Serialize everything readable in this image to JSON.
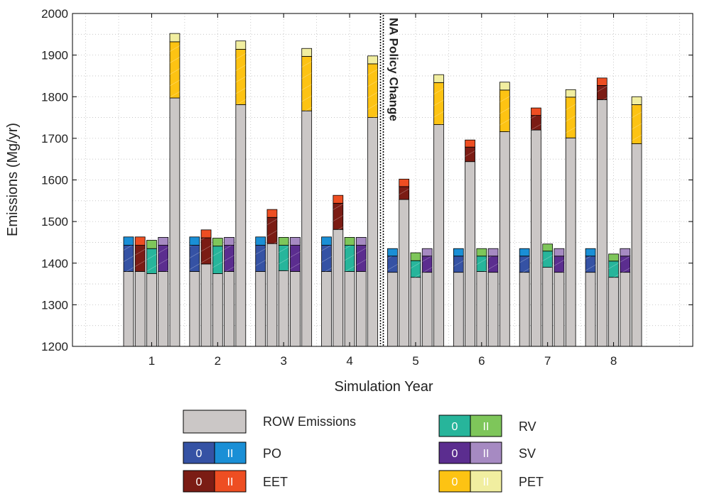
{
  "chart_data": {
    "type": "bar",
    "subtype": "grouped-stacked",
    "title": "",
    "xlabel": "Simulation Year",
    "ylabel": "Emissions (Mg/yr)",
    "ylim": [
      1200,
      2000
    ],
    "xlim": [
      -0.2,
      9.2
    ],
    "yticks": [
      1200,
      1300,
      1400,
      1500,
      1600,
      1700,
      1800,
      1900,
      2000
    ],
    "categories": [
      "1",
      "2",
      "3",
      "4",
      "5",
      "6",
      "7",
      "8"
    ],
    "grid": true,
    "annotation": {
      "text": "NA Policy Change",
      "between_categories": [
        "4",
        "5"
      ]
    },
    "colors": {
      "ROW": "#cbc7c6",
      "PO": [
        "#3552a4",
        "#1a8fd6"
      ],
      "EET": [
        "#7b1c14",
        "#ee4e22"
      ],
      "RV": [
        "#27b59b",
        "#7ec65a"
      ],
      "SV": [
        "#5b2d8f",
        "#a68ac2"
      ],
      "PET": [
        "#fdc313",
        "#f1eea0"
      ]
    },
    "bars": [
      [
        {
          "group": "PO",
          "row": 1380,
          "zero": 1443,
          "two": 1463
        },
        {
          "group": "EET",
          "row": 1380,
          "zero": 1443,
          "two": 1463
        },
        {
          "group": "RV",
          "row": 1375,
          "zero": 1435,
          "two": 1455
        },
        {
          "group": "SV",
          "row": 1380,
          "zero": 1443,
          "two": 1462
        },
        {
          "group": "PET",
          "row": 1797,
          "zero": 1932,
          "two": 1952
        }
      ],
      [
        {
          "group": "PO",
          "row": 1380,
          "zero": 1443,
          "two": 1463
        },
        {
          "group": "EET",
          "row": 1398,
          "zero": 1461,
          "two": 1480
        },
        {
          "group": "RV",
          "row": 1375,
          "zero": 1441,
          "two": 1460
        },
        {
          "group": "SV",
          "row": 1380,
          "zero": 1443,
          "two": 1462
        },
        {
          "group": "PET",
          "row": 1781,
          "zero": 1914,
          "two": 1934
        }
      ],
      [
        {
          "group": "PO",
          "row": 1380,
          "zero": 1443,
          "two": 1463
        },
        {
          "group": "EET",
          "row": 1447,
          "zero": 1510,
          "two": 1529
        },
        {
          "group": "RV",
          "row": 1382,
          "zero": 1443,
          "two": 1462
        },
        {
          "group": "SV",
          "row": 1380,
          "zero": 1443,
          "two": 1462
        },
        {
          "group": "PET",
          "row": 1766,
          "zero": 1897,
          "two": 1916
        }
      ],
      [
        {
          "group": "PO",
          "row": 1380,
          "zero": 1443,
          "two": 1463
        },
        {
          "group": "EET",
          "row": 1481,
          "zero": 1544,
          "two": 1563
        },
        {
          "group": "RV",
          "row": 1380,
          "zero": 1443,
          "two": 1462
        },
        {
          "group": "SV",
          "row": 1380,
          "zero": 1443,
          "two": 1462
        },
        {
          "group": "PET",
          "row": 1750,
          "zero": 1879,
          "two": 1898
        }
      ],
      [
        {
          "group": "PO",
          "row": 1378,
          "zero": 1417,
          "two": 1435
        },
        {
          "group": "EET",
          "row": 1553,
          "zero": 1584,
          "two": 1602
        },
        {
          "group": "RV",
          "row": 1366,
          "zero": 1406,
          "two": 1425
        },
        {
          "group": "SV",
          "row": 1378,
          "zero": 1417,
          "two": 1435
        },
        {
          "group": "PET",
          "row": 1733,
          "zero": 1834,
          "two": 1853
        }
      ],
      [
        {
          "group": "PO",
          "row": 1378,
          "zero": 1417,
          "two": 1435
        },
        {
          "group": "EET",
          "row": 1644,
          "zero": 1679,
          "two": 1696
        },
        {
          "group": "RV",
          "row": 1380,
          "zero": 1417,
          "two": 1435
        },
        {
          "group": "SV",
          "row": 1378,
          "zero": 1417,
          "two": 1435
        },
        {
          "group": "PET",
          "row": 1716,
          "zero": 1816,
          "two": 1835
        }
      ],
      [
        {
          "group": "PO",
          "row": 1378,
          "zero": 1417,
          "two": 1435
        },
        {
          "group": "EET",
          "row": 1720,
          "zero": 1755,
          "two": 1773
        },
        {
          "group": "RV",
          "row": 1390,
          "zero": 1429,
          "two": 1446
        },
        {
          "group": "SV",
          "row": 1378,
          "zero": 1417,
          "two": 1435
        },
        {
          "group": "PET",
          "row": 1701,
          "zero": 1799,
          "two": 1817
        }
      ],
      [
        {
          "group": "PO",
          "row": 1378,
          "zero": 1417,
          "two": 1435
        },
        {
          "group": "EET",
          "row": 1793,
          "zero": 1827,
          "two": 1845
        },
        {
          "group": "RV",
          "row": 1366,
          "zero": 1405,
          "two": 1422
        },
        {
          "group": "SV",
          "row": 1378,
          "zero": 1417,
          "two": 1435
        },
        {
          "group": "PET",
          "row": 1687,
          "zero": 1781,
          "two": 1800
        }
      ]
    ],
    "legend": {
      "placement": "bottom",
      "entries": [
        {
          "label": "ROW Emissions",
          "key": "ROW",
          "labels": []
        },
        {
          "label": "PO",
          "key": "PO",
          "labels": [
            "0",
            "II"
          ]
        },
        {
          "label": "EET",
          "key": "EET",
          "labels": [
            "0",
            "II"
          ]
        },
        {
          "label": "RV",
          "key": "RV",
          "labels": [
            "0",
            "II"
          ]
        },
        {
          "label": "SV",
          "key": "SV",
          "labels": [
            "0",
            "II"
          ]
        },
        {
          "label": "PET",
          "key": "PET",
          "labels": [
            "0",
            "II"
          ]
        }
      ]
    }
  }
}
